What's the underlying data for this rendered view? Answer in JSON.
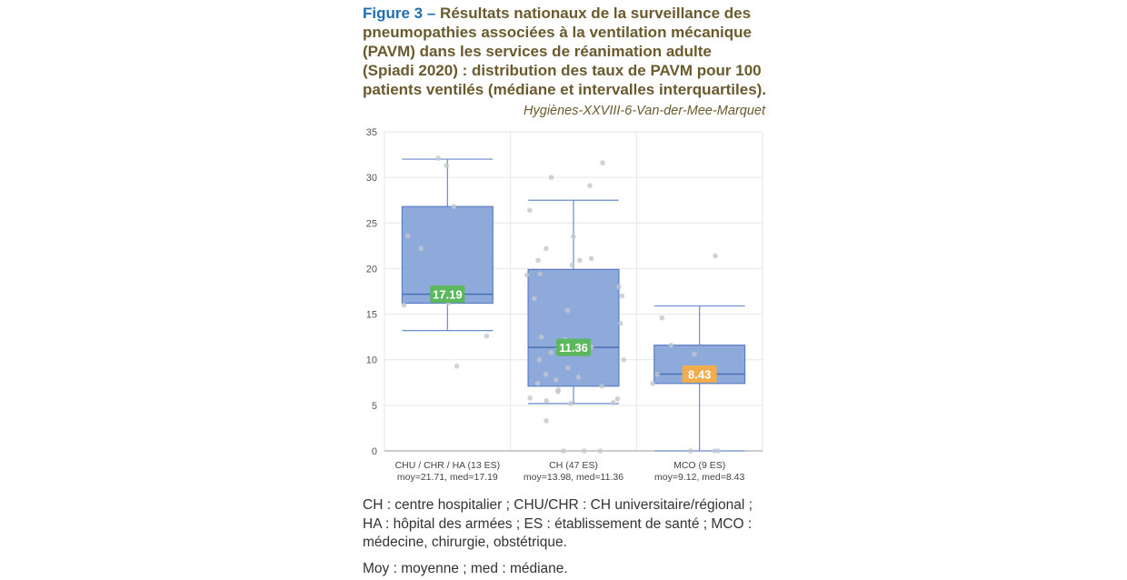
{
  "figure": {
    "label": "Figure 3 –",
    "title": "Résultats nationaux de la surveillance des pneumopathies associées à la ventilation mécanique (PAVM) dans les services de réanimation adulte (Spiadi 2020) : distribution des taux de PAVM pour 100 patients ventilés (médiane et intervalles interquartiles).",
    "source": "Hygiènes-XXVIII-6-Van-der-Mee-Marquet"
  },
  "footnotes": {
    "abbreviations": "CH : centre hospitalier ; CHU/CHR : CH universitaire/régional ; HA : hôpital des armées ; ES : établissement de santé ; MCO : médecine, chirurgie, obstétrique.",
    "stats": "Moy : moyenne ; med : médiane."
  },
  "colors": {
    "box_fill": "#8eaadb",
    "box_stroke": "#5b7fc4",
    "whisker": "#6a8ccc",
    "median_green": "#5cb85c",
    "median_orange": "#f0ad4e",
    "points": "#c2c7d0",
    "grid": "#e6e6e6"
  },
  "chart_data": {
    "type": "box",
    "ylim": [
      0,
      35
    ],
    "yticks": [
      0,
      5,
      10,
      15,
      20,
      25,
      30,
      35
    ],
    "grid": true,
    "categories": [
      {
        "label": "CHU / CHR / HA (13 ES)",
        "sublabel": "moy=21.71, med=17.19",
        "median": 17.19,
        "median_label": "17.19",
        "q1": 16.2,
        "q3": 26.8,
        "whisker_low": 13.2,
        "whisker_high": 32.0,
        "median_color": "green",
        "points": [
          31.3,
          26.8,
          23.6,
          22.2,
          17.0,
          16.2,
          16.0,
          12.6,
          9.3,
          32.1
        ]
      },
      {
        "label": "CH (47 ES)",
        "sublabel": "moy=13.98, med=11.36",
        "median": 11.36,
        "median_label": "11.36",
        "q1": 7.1,
        "q3": 19.9,
        "whisker_low": 5.2,
        "whisker_high": 27.5,
        "median_color": "green",
        "points": [
          30.0,
          31.6,
          29.1,
          26.4,
          23.5,
          22.2,
          21.1,
          20.9,
          20.9,
          20.4,
          19.4,
          19.3,
          18.0,
          17.0,
          16.7,
          15.4,
          14.0,
          12.5,
          12.2,
          11.6,
          11.4,
          10.8,
          10.0,
          10.0,
          9.1,
          8.4,
          8.1,
          7.8,
          7.4,
          7.1,
          6.7,
          6.5,
          5.8,
          5.7,
          5.5,
          5.3,
          5.2,
          3.3,
          0.0,
          0.0,
          0.0
        ]
      },
      {
        "label": "MCO (9 ES)",
        "sublabel": "moy=9.12, med=8.43",
        "median": 8.43,
        "median_label": "8.43",
        "q1": 7.4,
        "q3": 11.6,
        "whisker_low": 0.0,
        "whisker_high": 15.9,
        "median_color": "orange",
        "points": [
          21.4,
          14.6,
          11.6,
          10.6,
          8.4,
          7.4,
          0.0,
          0.0,
          0.0
        ]
      }
    ]
  }
}
